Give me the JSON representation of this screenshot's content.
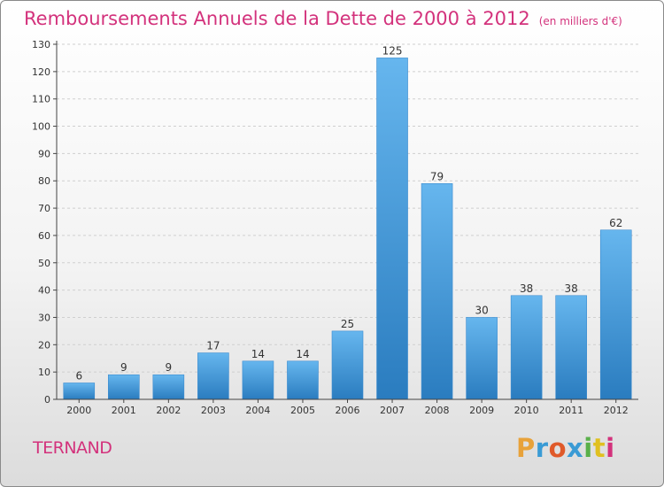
{
  "header": {
    "title": "Remboursements Annuels de la Dette de 2000 à 2012",
    "unit": "(en milliers d'€)"
  },
  "footer": {
    "commune": "TERNAND",
    "logo_text": "Proxiti",
    "logo_letter_colors": [
      "#e8a23a",
      "#3a9bd5",
      "#e05a2a",
      "#3a9bd5",
      "#5ab04a",
      "#e0c020",
      "#d3327c"
    ]
  },
  "colors": {
    "title": "#d3327c",
    "bar_light": "#66b6ee",
    "bar_dark": "#2a7cbf",
    "axis": "#444444",
    "grid": "#cfcfcf"
  },
  "chart_data": {
    "type": "bar",
    "categories": [
      "2000",
      "2001",
      "2002",
      "2003",
      "2004",
      "2005",
      "2006",
      "2007",
      "2008",
      "2009",
      "2010",
      "2011",
      "2012"
    ],
    "values": [
      6,
      9,
      9,
      17,
      14,
      14,
      25,
      125,
      79,
      30,
      38,
      38,
      62
    ],
    "title": "Remboursements Annuels de la Dette de 2000 à 2012",
    "ylim": [
      0,
      130
    ],
    "yticks": [
      0,
      10,
      20,
      30,
      40,
      50,
      60,
      70,
      80,
      90,
      100,
      110,
      120,
      130
    ],
    "grid": true,
    "data_labels": true
  }
}
